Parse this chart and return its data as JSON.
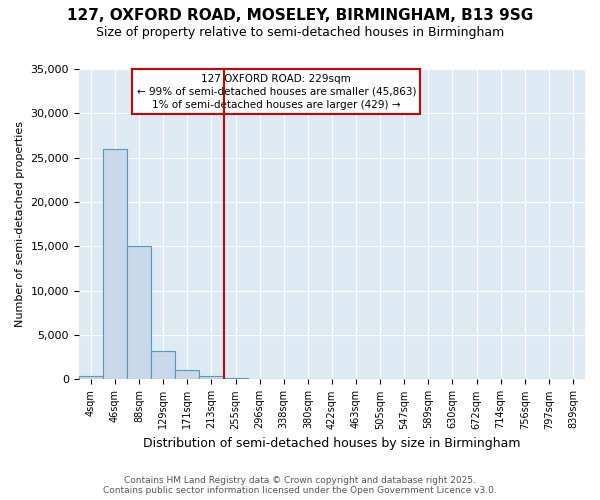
{
  "title": "127, OXFORD ROAD, MOSELEY, BIRMINGHAM, B13 9SG",
  "subtitle": "Size of property relative to semi-detached houses in Birmingham",
  "xlabel": "Distribution of semi-detached houses by size in Birmingham",
  "ylabel": "Number of semi-detached properties",
  "bin_labels": [
    "4sqm",
    "46sqm",
    "88sqm",
    "129sqm",
    "171sqm",
    "213sqm",
    "255sqm",
    "296sqm",
    "338sqm",
    "380sqm",
    "422sqm",
    "463sqm",
    "505sqm",
    "547sqm",
    "589sqm",
    "630sqm",
    "672sqm",
    "714sqm",
    "756sqm",
    "797sqm",
    "839sqm"
  ],
  "counts": [
    350,
    26000,
    15000,
    3200,
    1100,
    400,
    200,
    50,
    10,
    5,
    2,
    1,
    0,
    0,
    0,
    0,
    0,
    0,
    0,
    0,
    0
  ],
  "bar_color": "#c8d8e8",
  "bar_edge_color": "#5599bb",
  "reference_line_x": 5.5,
  "reference_line_color": "#cc0000",
  "annotation_text": "127 OXFORD ROAD: 229sqm\n← 99% of semi-detached houses are smaller (45,863)\n1% of semi-detached houses are larger (429) →",
  "annotation_box_color": "#cc0000",
  "ylim": [
    0,
    35000
  ],
  "yticks": [
    0,
    5000,
    10000,
    15000,
    20000,
    25000,
    30000,
    35000
  ],
  "footer1": "Contains HM Land Registry data © Crown copyright and database right 2025.",
  "footer2": "Contains public sector information licensed under the Open Government Licence v3.0.",
  "bg_color": "#ffffff",
  "plot_bg_color": "#ddeaf4"
}
